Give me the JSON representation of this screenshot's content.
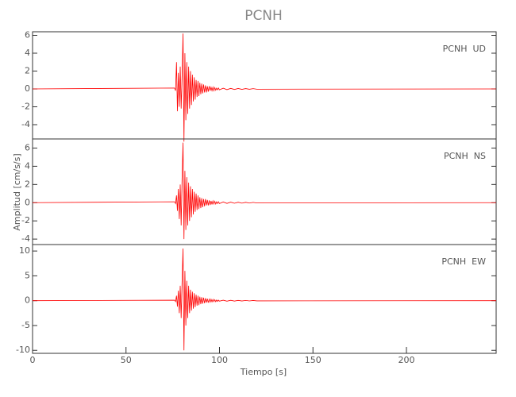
{
  "chart_data": [
    {
      "type": "line",
      "title": "PCNH",
      "annotation": "PCNH  UD",
      "x": [
        0,
        76,
        76.5,
        77,
        77.5,
        78,
        78.5,
        79,
        79.5,
        80,
        80.5,
        81,
        81.5,
        82,
        82.5,
        83,
        83.5,
        84,
        84.5,
        85,
        85.5,
        86,
        86.5,
        87,
        87.5,
        88,
        88.5,
        89,
        89.5,
        90,
        90.5,
        91,
        91.5,
        92,
        92.5,
        93,
        93.5,
        94,
        94.5,
        95,
        95.5,
        96,
        96.5,
        97,
        97.5,
        98,
        98.5,
        99,
        99.5,
        100,
        102,
        104,
        106,
        108,
        110,
        112,
        114,
        116,
        118,
        120,
        248
      ],
      "series": [
        {
          "color": "#ff0000",
          "values": [
            0,
            0.1,
            -0.2,
            3.0,
            -2.5,
            1.8,
            -2.0,
            2.5,
            -2.2,
            1.5,
            6.2,
            -5.9,
            4.0,
            -3.5,
            3.0,
            -2.8,
            2.5,
            -2.2,
            2.0,
            -1.8,
            1.6,
            -1.4,
            1.3,
            -1.2,
            1.0,
            -0.9,
            0.9,
            -0.8,
            0.7,
            -0.6,
            0.6,
            -0.5,
            0.5,
            -0.4,
            0.4,
            -0.4,
            0.3,
            -0.3,
            0.3,
            -0.2,
            0.2,
            -0.2,
            0.2,
            -0.2,
            0.15,
            -0.15,
            0.1,
            -0.1,
            0.1,
            -0.1,
            0.08,
            -0.08,
            0.06,
            -0.06,
            0.05,
            -0.05,
            0.04,
            -0.04,
            0.03,
            -0.03,
            0
          ]
        }
      ],
      "xlim": [
        0,
        248
      ],
      "ylim": [
        -5.6,
        6.4
      ],
      "yticks": [
        -4,
        -2,
        0,
        2,
        4,
        6
      ]
    },
    {
      "type": "line",
      "annotation": "PCNH  NS",
      "ylabel": "Amplitud [cm/s/s]",
      "x": [
        0,
        76,
        76.5,
        77,
        77.5,
        78,
        78.5,
        79,
        79.5,
        80,
        80.5,
        81,
        81.5,
        82,
        82.5,
        83,
        83.5,
        84,
        84.5,
        85,
        85.5,
        86,
        86.5,
        87,
        87.5,
        88,
        88.5,
        89,
        89.5,
        90,
        90.5,
        91,
        91.5,
        92,
        92.5,
        93,
        93.5,
        94,
        94.5,
        95,
        95.5,
        96,
        96.5,
        97,
        97.5,
        98,
        98.5,
        99,
        99.5,
        100,
        102,
        104,
        106,
        108,
        110,
        112,
        114,
        116,
        118,
        120,
        248
      ],
      "series": [
        {
          "color": "#ff0000",
          "values": [
            0,
            0.1,
            -0.1,
            0.8,
            -0.9,
            1.5,
            -1.8,
            2.0,
            -2.5,
            2.8,
            6.6,
            -4.0,
            3.5,
            -3.0,
            2.8,
            -2.5,
            2.2,
            -2.0,
            1.8,
            -1.6,
            1.5,
            -1.3,
            1.2,
            -1.0,
            1.0,
            -0.8,
            0.8,
            -0.7,
            0.6,
            -0.6,
            0.5,
            -0.5,
            0.4,
            -0.4,
            0.4,
            -0.3,
            0.3,
            -0.3,
            0.25,
            -0.25,
            0.2,
            -0.2,
            0.2,
            -0.15,
            0.15,
            -0.15,
            0.1,
            -0.1,
            0.1,
            -0.1,
            0.08,
            -0.08,
            0.06,
            -0.06,
            0.05,
            -0.05,
            0.04,
            -0.04,
            0.03,
            -0.03,
            0
          ]
        }
      ],
      "xlim": [
        0,
        248
      ],
      "ylim": [
        -4.6,
        7
      ],
      "yticks": [
        -4,
        -2,
        0,
        2,
        4,
        6
      ]
    },
    {
      "type": "line",
      "annotation": "PCNH  EW",
      "xlabel": "Tiempo [s]",
      "x": [
        0,
        76,
        76.5,
        77,
        77.5,
        78,
        78.5,
        79,
        79.5,
        80,
        80.5,
        81,
        81.5,
        82,
        82.5,
        83,
        83.5,
        84,
        84.5,
        85,
        85.5,
        86,
        86.5,
        87,
        87.5,
        88,
        88.5,
        89,
        89.5,
        90,
        90.5,
        91,
        91.5,
        92,
        92.5,
        93,
        93.5,
        94,
        94.5,
        95,
        95.5,
        96,
        96.5,
        97,
        97.5,
        98,
        98.5,
        99,
        99.5,
        100,
        102,
        104,
        106,
        108,
        110,
        112,
        114,
        116,
        118,
        120,
        248
      ],
      "series": [
        {
          "color": "#ff0000",
          "values": [
            0,
            0.1,
            -0.2,
            1.0,
            -1.2,
            2.0,
            -2.5,
            3.0,
            -3.5,
            4.0,
            10.5,
            -10.0,
            6.0,
            -5.0,
            4.0,
            -3.5,
            3.0,
            -2.5,
            2.2,
            -2.0,
            1.8,
            -1.6,
            1.5,
            -1.3,
            1.2,
            -1.0,
            1.0,
            -0.9,
            0.8,
            -0.7,
            0.7,
            -0.6,
            0.6,
            -0.5,
            0.5,
            -0.4,
            0.4,
            -0.4,
            0.3,
            -0.3,
            0.3,
            -0.25,
            0.25,
            -0.2,
            0.2,
            -0.2,
            0.15,
            -0.15,
            0.1,
            -0.1,
            0.1,
            -0.1,
            0.08,
            -0.08,
            0.06,
            -0.06,
            0.05,
            -0.05,
            0.04,
            -0.04,
            0
          ]
        }
      ],
      "xlim": [
        0,
        248
      ],
      "ylim": [
        -10.6,
        11.3
      ],
      "yticks": [
        -10,
        -5,
        0,
        5,
        10
      ],
      "xticks": [
        0,
        50,
        100,
        150,
        200
      ]
    }
  ]
}
